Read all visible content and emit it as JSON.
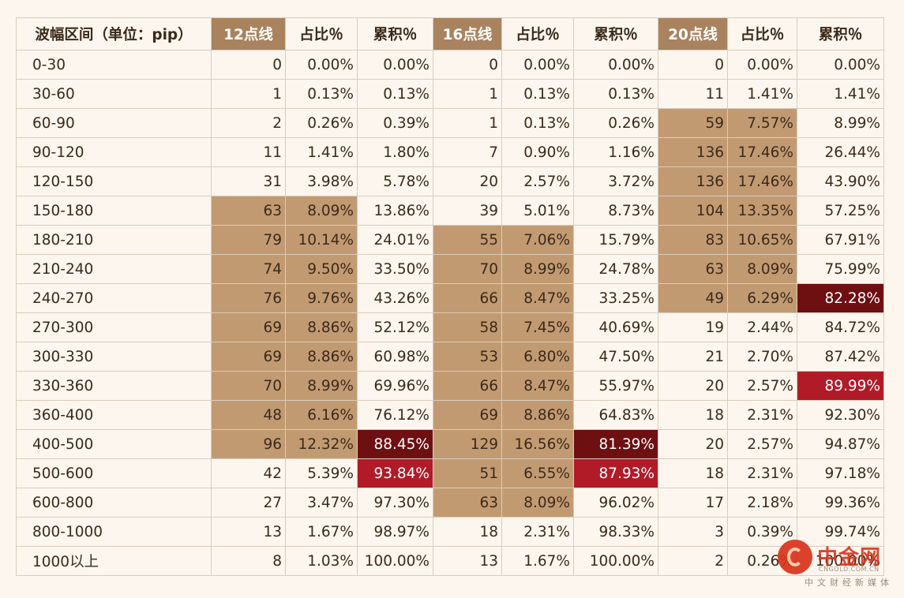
{
  "table": {
    "headers": [
      "波幅区间（单位：pip）",
      "12点线",
      "占比％",
      "累积％",
      "16点线",
      "占比％",
      "累积％",
      "20点线",
      "占比％",
      "累积％"
    ],
    "rows": [
      [
        "0-30",
        "0",
        "0.00%",
        "0.00%",
        "0",
        "0.00%",
        "0.00%",
        "0",
        "0.00%",
        "0.00%"
      ],
      [
        "30-60",
        "1",
        "0.13%",
        "0.13%",
        "1",
        "0.13%",
        "0.13%",
        "11",
        "1.41%",
        "1.41%"
      ],
      [
        "60-90",
        "2",
        "0.26%",
        "0.39%",
        "1",
        "0.13%",
        "0.26%",
        "59",
        "7.57%",
        "8.99%"
      ],
      [
        "90-120",
        "11",
        "1.41%",
        "1.80%",
        "7",
        "0.90%",
        "1.16%",
        "136",
        "17.46%",
        "26.44%"
      ],
      [
        "120-150",
        "31",
        "3.98%",
        "5.78%",
        "20",
        "2.57%",
        "3.72%",
        "136",
        "17.46%",
        "43.90%"
      ],
      [
        "150-180",
        "63",
        "8.09%",
        "13.86%",
        "39",
        "5.01%",
        "8.73%",
        "104",
        "13.35%",
        "57.25%"
      ],
      [
        "180-210",
        "79",
        "10.14%",
        "24.01%",
        "55",
        "7.06%",
        "15.79%",
        "83",
        "10.65%",
        "67.91%"
      ],
      [
        "210-240",
        "74",
        "9.50%",
        "33.50%",
        "70",
        "8.99%",
        "24.78%",
        "63",
        "8.09%",
        "75.99%"
      ],
      [
        "240-270",
        "76",
        "9.76%",
        "43.26%",
        "66",
        "8.47%",
        "33.25%",
        "49",
        "6.29%",
        "82.28%"
      ],
      [
        "270-300",
        "69",
        "8.86%",
        "52.12%",
        "58",
        "7.45%",
        "40.69%",
        "19",
        "2.44%",
        "84.72%"
      ],
      [
        "300-330",
        "69",
        "8.86%",
        "60.98%",
        "53",
        "6.80%",
        "47.50%",
        "21",
        "2.70%",
        "87.42%"
      ],
      [
        "330-360",
        "70",
        "8.99%",
        "69.96%",
        "66",
        "8.47%",
        "55.97%",
        "20",
        "2.57%",
        "89.99%"
      ],
      [
        "360-400",
        "48",
        "6.16%",
        "76.12%",
        "69",
        "8.86%",
        "64.83%",
        "18",
        "2.31%",
        "92.30%"
      ],
      [
        "400-500",
        "96",
        "12.32%",
        "88.45%",
        "129",
        "16.56%",
        "81.39%",
        "20",
        "2.57%",
        "94.87%"
      ],
      [
        "500-600",
        "42",
        "5.39%",
        "93.84%",
        "51",
        "6.55%",
        "87.93%",
        "18",
        "2.31%",
        "97.18%"
      ],
      [
        "600-800",
        "27",
        "3.47%",
        "97.30%",
        "63",
        "8.09%",
        "96.02%",
        "17",
        "2.18%",
        "99.36%"
      ],
      [
        "800-1000",
        "13",
        "1.67%",
        "98.97%",
        "18",
        "2.31%",
        "98.33%",
        "3",
        "0.39%",
        "99.74%"
      ],
      [
        "1000以上",
        "8",
        "1.03%",
        "100.00%",
        "13",
        "1.67%",
        "100.00%",
        "2",
        "0.26%",
        "100.00%"
      ]
    ],
    "highlight_colors": {
      "tan": "#c29a72",
      "dark_red": "#6e0f12",
      "red": "#b11a27",
      "header_tan": "#a8835e"
    },
    "highlights": {
      "tan": [
        [
          5,
          1
        ],
        [
          5,
          2
        ],
        [
          6,
          1
        ],
        [
          6,
          2
        ],
        [
          7,
          1
        ],
        [
          7,
          2
        ],
        [
          8,
          1
        ],
        [
          8,
          2
        ],
        [
          9,
          1
        ],
        [
          9,
          2
        ],
        [
          10,
          1
        ],
        [
          10,
          2
        ],
        [
          11,
          1
        ],
        [
          11,
          2
        ],
        [
          12,
          1
        ],
        [
          12,
          2
        ],
        [
          13,
          1
        ],
        [
          13,
          2
        ],
        [
          6,
          4
        ],
        [
          6,
          5
        ],
        [
          7,
          4
        ],
        [
          7,
          5
        ],
        [
          8,
          4
        ],
        [
          8,
          5
        ],
        [
          9,
          4
        ],
        [
          9,
          5
        ],
        [
          10,
          4
        ],
        [
          10,
          5
        ],
        [
          11,
          4
        ],
        [
          11,
          5
        ],
        [
          12,
          4
        ],
        [
          12,
          5
        ],
        [
          13,
          4
        ],
        [
          13,
          5
        ],
        [
          14,
          4
        ],
        [
          14,
          5
        ],
        [
          15,
          4
        ],
        [
          15,
          5
        ],
        [
          2,
          7
        ],
        [
          2,
          8
        ],
        [
          3,
          7
        ],
        [
          3,
          8
        ],
        [
          4,
          7
        ],
        [
          4,
          8
        ],
        [
          5,
          7
        ],
        [
          5,
          8
        ],
        [
          6,
          7
        ],
        [
          6,
          8
        ],
        [
          7,
          7
        ],
        [
          7,
          8
        ],
        [
          8,
          7
        ],
        [
          8,
          8
        ]
      ],
      "dark": [
        [
          13,
          3
        ],
        [
          13,
          6
        ],
        [
          8,
          9
        ]
      ],
      "red": [
        [
          14,
          3
        ],
        [
          14,
          6
        ],
        [
          11,
          9
        ]
      ]
    },
    "highlight_header_cols": [
      1,
      4,
      7
    ]
  },
  "watermark": {
    "brand": "中金网",
    "domain": "CNGOLD.COM.CN",
    "slogan": "中文财经新媒体"
  }
}
